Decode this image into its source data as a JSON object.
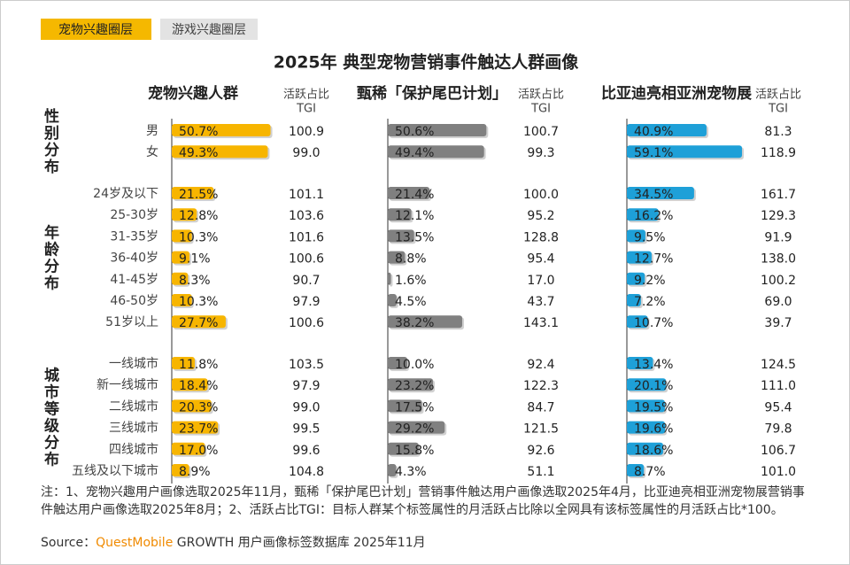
{
  "tabs": [
    "宠物兴趣圈层",
    "游戏兴趣圈层"
  ],
  "title": "2025年 典型宠物营销事件触达人群画像",
  "groups": [
    {
      "label": "性别分布",
      "categories": [
        "男",
        "女"
      ]
    },
    {
      "label": "年龄分布",
      "categories": [
        "24岁及以下",
        "25-30岁",
        "31-35岁",
        "36-40岁",
        "41-45岁",
        "46-50岁",
        "51岁以上"
      ]
    },
    {
      "label": "城市等级分布",
      "categories": [
        "一线城市",
        "新一线城市",
        "二线城市",
        "三线城市",
        "四线城市",
        "五线及以下城市"
      ]
    }
  ],
  "panels": [
    {
      "title": "宠物兴趣人群",
      "share_header": "活跃占比",
      "tgi_header": "TGI",
      "color": "#f7b500",
      "values": [
        50.7,
        49.3,
        21.5,
        12.8,
        10.3,
        9.1,
        8.3,
        10.3,
        27.7,
        11.8,
        18.4,
        20.3,
        23.7,
        17.0,
        8.9
      ],
      "value_labels": [
        "50.7%",
        "49.3%",
        "21.5%",
        "12.8%",
        "10.3%",
        "9.1%",
        "8.3%",
        "10.3%",
        "27.7%",
        "11.8%",
        "18.4%",
        "20.3%",
        "23.7%",
        "17.0%",
        "8.9%"
      ],
      "tgi": [
        "100.9",
        "99.0",
        "101.1",
        "103.6",
        "101.6",
        "100.6",
        "90.7",
        "97.9",
        "100.6",
        "103.5",
        "97.9",
        "99.0",
        "99.5",
        "99.6",
        "104.8"
      ]
    },
    {
      "title": "甄稀「保护尾巴计划」",
      "share_header": "活跃占比",
      "tgi_header": "TGI",
      "color": "#808080",
      "values": [
        50.6,
        49.4,
        21.4,
        12.1,
        13.5,
        8.8,
        1.6,
        4.5,
        38.2,
        10.0,
        23.2,
        17.5,
        29.2,
        15.8,
        4.3
      ],
      "value_labels": [
        "50.6%",
        "49.4%",
        "21.4%",
        "12.1%",
        "13.5%",
        "8.8%",
        "1.6%",
        "4.5%",
        "38.2%",
        "10.0%",
        "23.2%",
        "17.5%",
        "29.2%",
        "15.8%",
        "4.3%"
      ],
      "tgi": [
        "100.7",
        "99.3",
        "100.0",
        "95.2",
        "128.8",
        "95.4",
        "17.0",
        "43.7",
        "143.1",
        "92.4",
        "122.3",
        "84.7",
        "121.5",
        "92.6",
        "51.1"
      ]
    },
    {
      "title": "比亚迪亮相亚洲宠物展",
      "share_header": "活跃占比",
      "tgi_header": "TGI",
      "color": "#1ea0d8",
      "values": [
        40.9,
        59.1,
        34.5,
        16.2,
        9.5,
        12.7,
        9.2,
        7.2,
        10.7,
        13.4,
        20.1,
        19.5,
        19.6,
        18.6,
        8.7
      ],
      "value_labels": [
        "40.9%",
        "59.1%",
        "34.5%",
        "16.2%",
        "9.5%",
        "12.7%",
        "9.2%",
        "7.2%",
        "10.7%",
        "13.4%",
        "20.1%",
        "19.5%",
        "19.6%",
        "18.6%",
        "8.7%"
      ],
      "tgi": [
        "81.3",
        "118.9",
        "161.7",
        "129.3",
        "91.9",
        "138.0",
        "100.2",
        "69.0",
        "39.7",
        "124.5",
        "111.0",
        "95.4",
        "79.8",
        "106.7",
        "101.0"
      ]
    }
  ],
  "note": "注：1、宠物兴趣用户画像选取2025年11月，甄稀「保护尾巴计划」营销事件触达用户画像选取2025年4月，比亚迪亮相亚洲宠物展营销事件触达用户画像选取2025年8月；2、活跃占比TGI：目标人群某个标签属性的月活跃占比除以全网具有该标签属性的月活跃占比*100。",
  "source": {
    "label": "Source：",
    "brand": "QuestMobile",
    "text": "GROWTH 用户画像标签数据库 2025年11月"
  }
}
